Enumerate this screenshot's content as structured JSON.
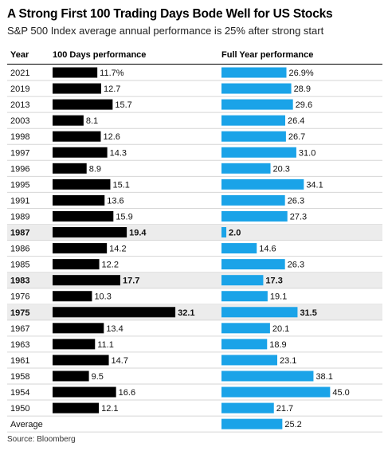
{
  "title": "A Strong First 100 Trading Days Bode Well for US Stocks",
  "subtitle": "S&P 500 Index average annual performance is 25% after strong start",
  "source": "Source: Bloomberg",
  "colors": {
    "hundred_days_bar": "#000000",
    "full_year_bar": "#1aa3e8",
    "highlight_row": "#ececec"
  },
  "chart_data": {
    "type": "bar",
    "layout": "paired horizontal bar table",
    "columns": [
      "Year",
      "100 Days performance",
      "Full Year performance"
    ],
    "categories": [
      "2021",
      "2019",
      "2013",
      "2003",
      "1998",
      "1997",
      "1996",
      "1995",
      "1991",
      "1989",
      "1987",
      "1986",
      "1985",
      "1983",
      "1976",
      "1975",
      "1967",
      "1963",
      "1961",
      "1958",
      "1954",
      "1950"
    ],
    "highlighted": [
      "1987",
      "1983",
      "1975"
    ],
    "series": [
      {
        "name": "100 Days performance",
        "values": [
          11.7,
          12.7,
          15.7,
          8.1,
          12.6,
          14.3,
          8.9,
          15.1,
          13.6,
          15.9,
          19.4,
          14.2,
          12.2,
          17.7,
          10.3,
          32.1,
          13.4,
          11.1,
          14.7,
          9.5,
          16.6,
          12.1
        ],
        "labels": [
          "11.7%",
          "12.7",
          "15.7",
          "8.1",
          "12.6",
          "14.3",
          "8.9",
          "15.1",
          "13.6",
          "15.9",
          "19.4",
          "14.2",
          "12.2",
          "17.7",
          "10.3",
          "32.1",
          "13.4",
          "11.1",
          "14.7",
          "9.5",
          "16.6",
          "12.1"
        ]
      },
      {
        "name": "Full Year performance",
        "values": [
          26.9,
          28.9,
          29.6,
          26.4,
          26.7,
          31.0,
          20.3,
          34.1,
          26.3,
          27.3,
          2.0,
          14.6,
          26.3,
          17.3,
          19.1,
          31.5,
          20.1,
          18.9,
          23.1,
          38.1,
          45.0,
          21.7
        ],
        "labels": [
          "26.9%",
          "28.9",
          "29.6",
          "26.4",
          "26.7",
          "31.0",
          "20.3",
          "34.1",
          "26.3",
          "27.3",
          "2.0",
          "14.6",
          "26.3",
          "17.3",
          "19.1",
          "31.5",
          "20.1",
          "18.9",
          "23.1",
          "38.1",
          "45.0",
          "21.7"
        ]
      }
    ],
    "average": {
      "label": "Average",
      "value": 25.2,
      "value_label": "25.2"
    }
  }
}
